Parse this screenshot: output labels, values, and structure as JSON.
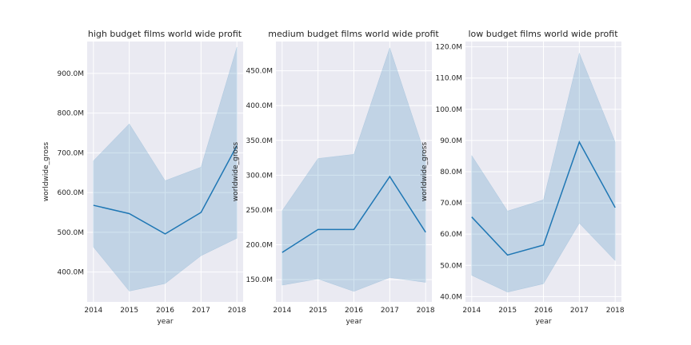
{
  "chart_data": [
    {
      "type": "line",
      "title": "high budget films world wide profit",
      "xlabel": "year",
      "ylabel": "worldwide_gross",
      "x": [
        2014,
        2015,
        2016,
        2017,
        2018
      ],
      "series": [
        {
          "values": [
            568000000,
            547000000,
            496000000,
            550000000,
            718000000
          ],
          "ci_lower": [
            463000000,
            352000000,
            371000000,
            441000000,
            485000000
          ],
          "ci_upper": [
            680000000,
            773000000,
            630000000,
            664000000,
            966000000
          ]
        }
      ],
      "ylim": [
        325000000,
        980000000
      ],
      "yticks": [
        400000000,
        500000000,
        600000000,
        700000000,
        800000000,
        900000000
      ],
      "ytick_labels": [
        "400.0M",
        "500.0M",
        "600.0M",
        "700.0M",
        "800.0M",
        "900.0M"
      ],
      "xtick_labels": [
        "2014",
        "2015",
        "2016",
        "2017",
        "2018"
      ],
      "grid": true
    },
    {
      "type": "line",
      "title": "medium budget films world wide profit",
      "xlabel": "year",
      "ylabel": "worldwide_gross",
      "x": [
        2014,
        2015,
        2016,
        2017,
        2018
      ],
      "series": [
        {
          "values": [
            189000000,
            222000000,
            222000000,
            298000000,
            218000000
          ],
          "ci_lower": [
            142000000,
            151000000,
            133000000,
            153000000,
            146000000
          ],
          "ci_upper": [
            249000000,
            324000000,
            330000000,
            483000000,
            327000000
          ]
        }
      ],
      "ylim": [
        118000000,
        492000000
      ],
      "yticks": [
        150000000,
        200000000,
        250000000,
        300000000,
        350000000,
        400000000,
        450000000
      ],
      "ytick_labels": [
        "150.0M",
        "200.0M",
        "250.0M",
        "300.0M",
        "350.0M",
        "400.0M",
        "450.0M"
      ],
      "xtick_labels": [
        "2014",
        "2015",
        "2016",
        "2017",
        "2018"
      ],
      "grid": true
    },
    {
      "type": "line",
      "title": "low budget films world wide profit",
      "xlabel": "year",
      "ylabel": "worldwide_gross",
      "x": [
        2014,
        2015,
        2016,
        2017,
        2018
      ],
      "series": [
        {
          "values": [
            65500000,
            53300000,
            56500000,
            89500000,
            68500000
          ],
          "ci_lower": [
            46800000,
            41400000,
            44100000,
            63500000,
            51500000
          ],
          "ci_upper": [
            85200000,
            67400000,
            71000000,
            118000000,
            89500000
          ]
        }
      ],
      "ylim": [
        38300000,
        121700000
      ],
      "yticks": [
        40000000,
        50000000,
        60000000,
        70000000,
        80000000,
        90000000,
        100000000,
        110000000,
        120000000
      ],
      "ytick_labels": [
        "40.0M",
        "50.0M",
        "60.0M",
        "70.0M",
        "80.0M",
        "90.0M",
        "100.0M",
        "110.0M",
        "120.0M"
      ],
      "xtick_labels": [
        "2014",
        "2015",
        "2016",
        "2017",
        "2018"
      ],
      "grid": true
    }
  ]
}
